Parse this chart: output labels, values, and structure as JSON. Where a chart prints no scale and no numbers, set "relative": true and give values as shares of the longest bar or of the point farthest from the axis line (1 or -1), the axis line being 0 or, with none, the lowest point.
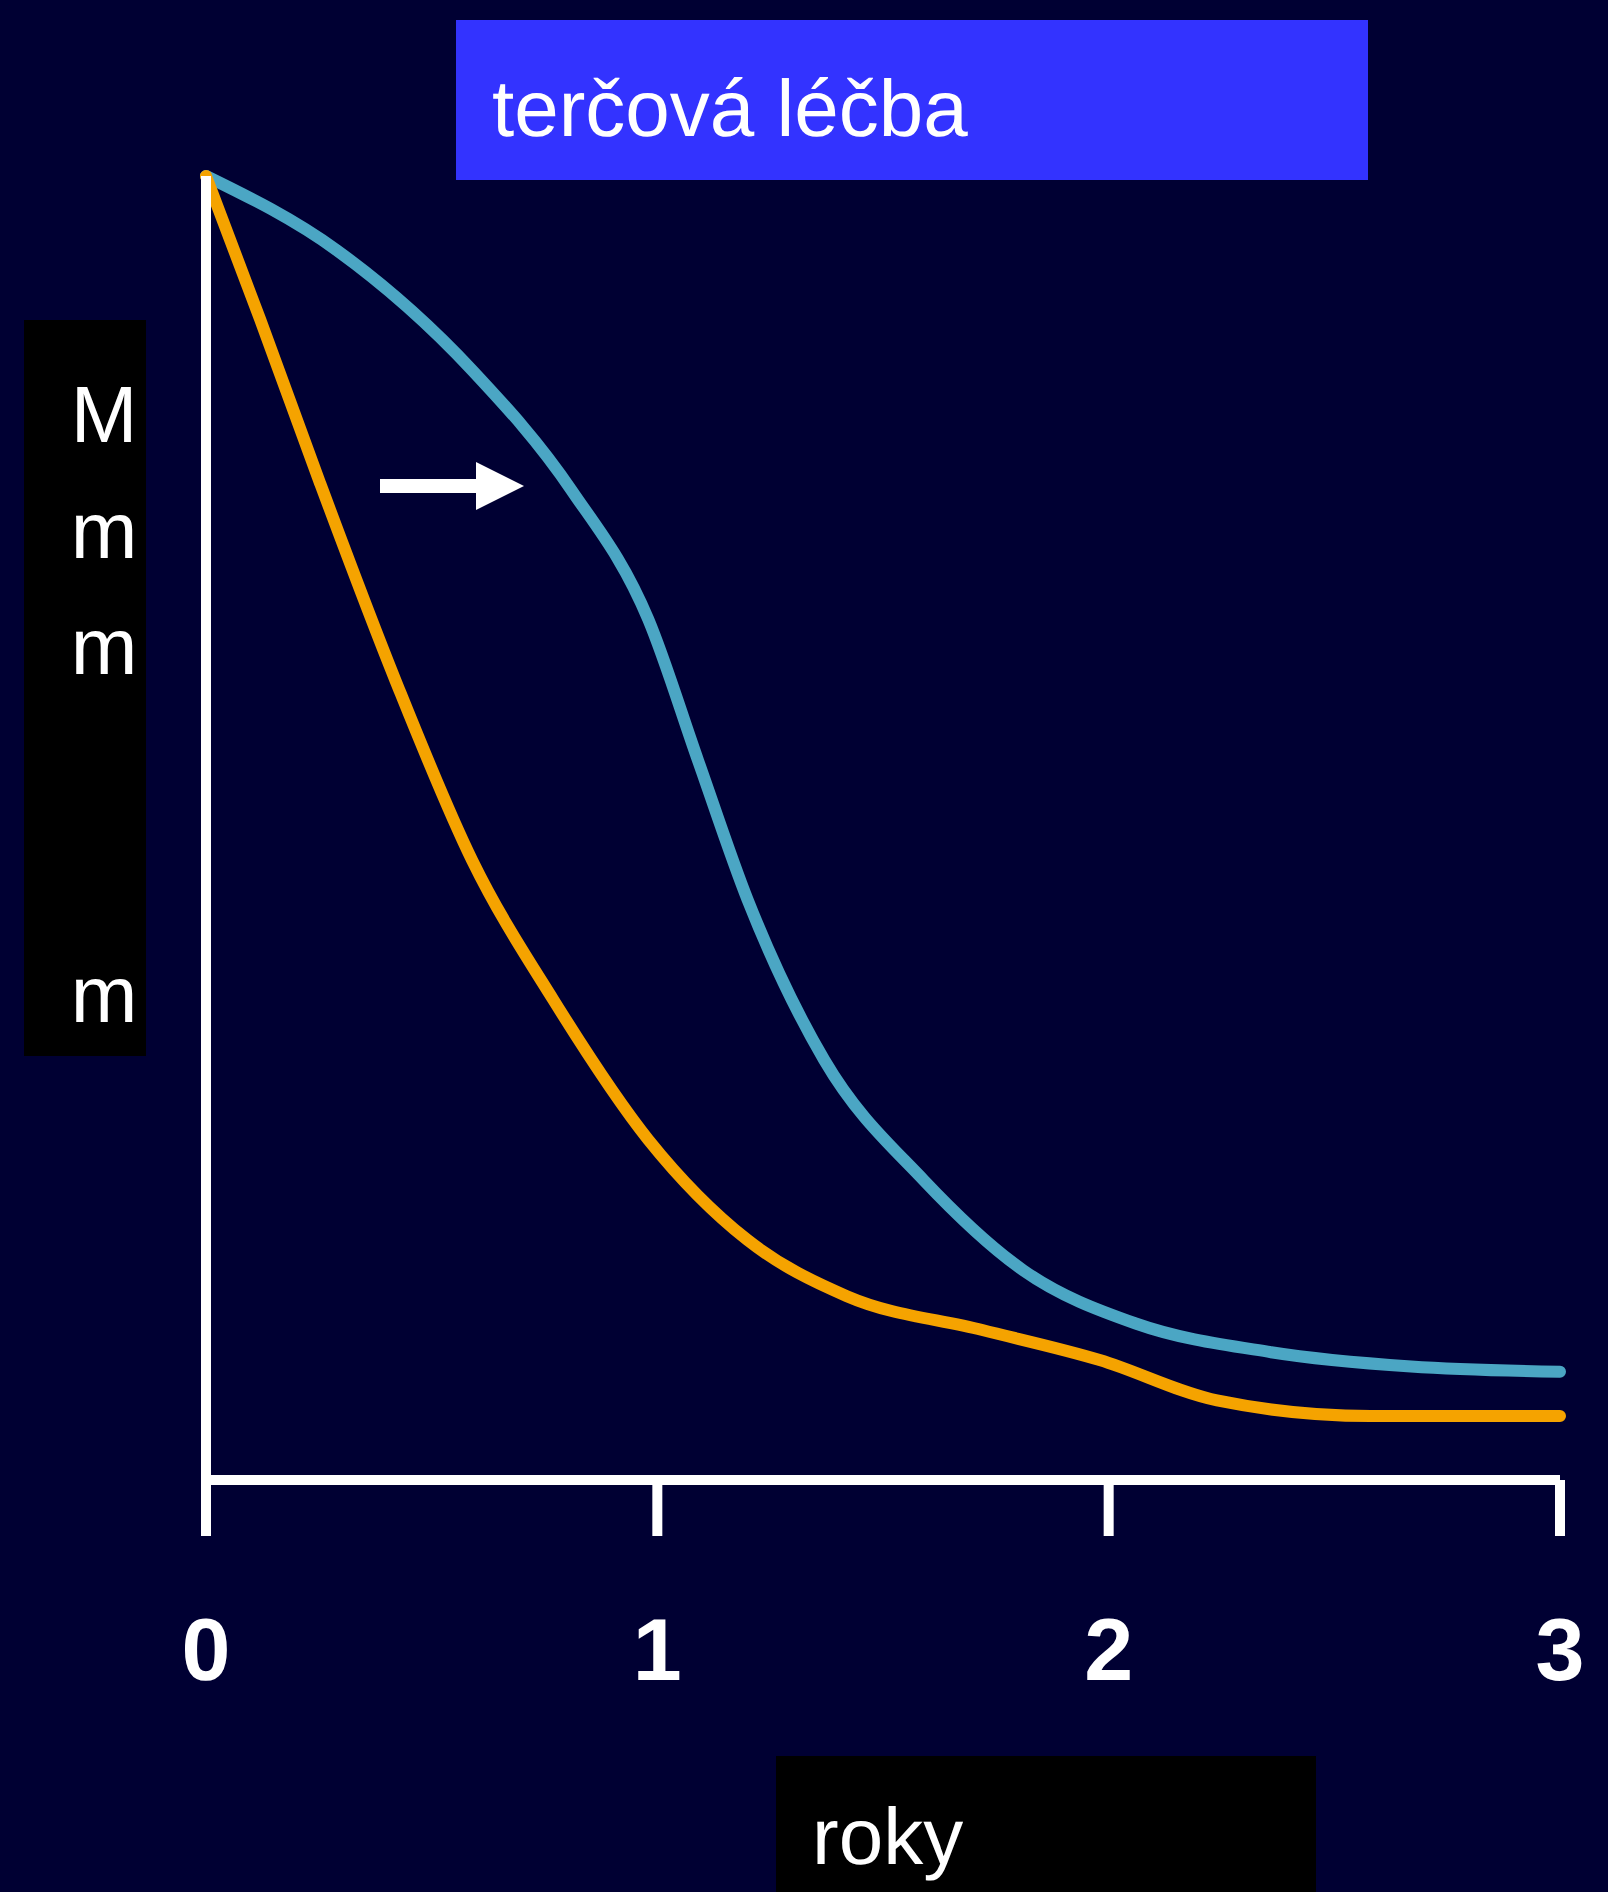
{
  "chart_data": {
    "type": "line",
    "title": "terčová léčba",
    "xlabel": "roky",
    "ylabel": "Mmm  m",
    "relative": true,
    "xlim": [
      0,
      3
    ],
    "xticks": [
      0,
      1,
      2,
      3
    ],
    "grid": false,
    "line_style": "solid",
    "series": [
      {
        "color": "#4ba6c4",
        "x": [
          0,
          0.29,
          0.59,
          0.81,
          0.98,
          1.09,
          1.2,
          1.37,
          1.59,
          1.81,
          2.06,
          2.36,
          2.67,
          3.0
        ],
        "values": [
          1,
          0.943,
          0.851,
          0.759,
          0.66,
          0.552,
          0.445,
          0.322,
          0.23,
          0.161,
          0.12,
          0.098,
          0.087,
          0.083
        ]
      },
      {
        "color": "#f5a300",
        "x": [
          0,
          0.12,
          0.25,
          0.42,
          0.59,
          0.77,
          0.98,
          1.2,
          1.42,
          1.72,
          1.98,
          2.24,
          2.58,
          3.0
        ],
        "values": [
          1,
          0.89,
          0.767,
          0.613,
          0.475,
          0.368,
          0.261,
          0.184,
          0.141,
          0.115,
          0.092,
          0.061,
          0.049,
          0.049
        ]
      }
    ]
  }
}
